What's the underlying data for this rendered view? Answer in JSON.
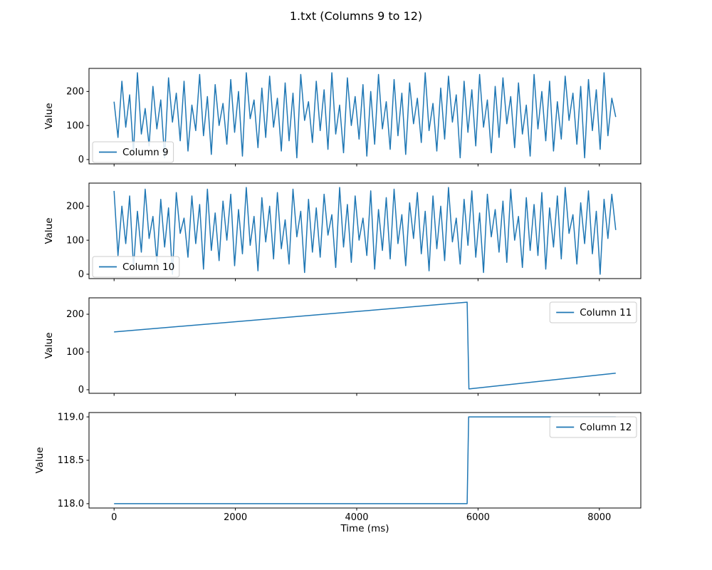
{
  "title": "1.txt (Columns 9 to 12)",
  "line_color": "#1f77b4",
  "axis_color": "#000000",
  "legend_border_color": "#cccccc",
  "xaxis": {
    "label": "Time (ms)",
    "ticks": [
      0,
      2000,
      4000,
      6000,
      8000
    ],
    "tick_labels": [
      "0",
      "2000",
      "4000",
      "6000",
      "8000"
    ],
    "xlim": [
      -413.5,
      8683.5
    ]
  },
  "chart_data": [
    {
      "type": "line",
      "name": "Column 9",
      "ylabel": "Value",
      "legend_loc": "lower left",
      "yticks": [
        0,
        100,
        200
      ],
      "ytick_labels": [
        "0",
        "100",
        "200"
      ],
      "ylim": [
        -12.75,
        267.75
      ],
      "x_start": 0,
      "x_end": 8270,
      "values": [
        170,
        65,
        230,
        95,
        190,
        20,
        255,
        75,
        150,
        40,
        215,
        90,
        175,
        5,
        240,
        110,
        195,
        55,
        230,
        25,
        160,
        85,
        250,
        70,
        185,
        15,
        220,
        100,
        165,
        45,
        235,
        80,
        200,
        10,
        255,
        120,
        175,
        35,
        210,
        65,
        245,
        95,
        180,
        25,
        225,
        55,
        195,
        5,
        250,
        115,
        170,
        50,
        230,
        85,
        205,
        30,
        255,
        75,
        160,
        20,
        240,
        100,
        185,
        60,
        220,
        10,
        200,
        45,
        250,
        90,
        170,
        30,
        235,
        70,
        195,
        15,
        225,
        105,
        180,
        50,
        255,
        85,
        165,
        25,
        210,
        60,
        245,
        110,
        190,
        5,
        230,
        80,
        205,
        40,
        250,
        95,
        175,
        20,
        215,
        65,
        240,
        105,
        185,
        35,
        225,
        75,
        160,
        10,
        250,
        90,
        200,
        55,
        230,
        25,
        170,
        60,
        245,
        115,
        195,
        45,
        215,
        5,
        235,
        85,
        205,
        30,
        255,
        70,
        180,
        125
      ]
    },
    {
      "type": "line",
      "name": "Column 10",
      "ylabel": "Value",
      "legend_loc": "lower left",
      "yticks": [
        0,
        100,
        200
      ],
      "ytick_labels": [
        "0",
        "100",
        "200"
      ],
      "ylim": [
        -12.75,
        267.75
      ],
      "x_start": 0,
      "x_end": 8270,
      "values": [
        245,
        55,
        200,
        90,
        230,
        20,
        185,
        65,
        250,
        105,
        170,
        35,
        220,
        80,
        195,
        0,
        240,
        120,
        165,
        50,
        230,
        90,
        205,
        15,
        250,
        70,
        180,
        40,
        215,
        100,
        235,
        25,
        190,
        60,
        255,
        85,
        170,
        10,
        225,
        95,
        200,
        45,
        240,
        75,
        160,
        30,
        250,
        110,
        185,
        5,
        220,
        65,
        195,
        50,
        235,
        115,
        175,
        20,
        255,
        80,
        205,
        35,
        230,
        100,
        165,
        55,
        245,
        15,
        190,
        70,
        225,
        45,
        250,
        90,
        175,
        25,
        210,
        105,
        240,
        60,
        185,
        10,
        230,
        75,
        200,
        40,
        255,
        95,
        165,
        30,
        220,
        85,
        245,
        50,
        180,
        5,
        235,
        110,
        190,
        65,
        215,
        35,
        250,
        100,
        170,
        20,
        225,
        70,
        205,
        55,
        240,
        15,
        195,
        80,
        230,
        45,
        255,
        120,
        175,
        30,
        210,
        90,
        245,
        60,
        185,
        0,
        220,
        105,
        235,
        130
      ]
    },
    {
      "type": "line",
      "name": "Column 11",
      "ylabel": "Value",
      "legend_loc": "upper right",
      "yticks": [
        0,
        100,
        200
      ],
      "ytick_labels": [
        "0",
        "100",
        "200"
      ],
      "ylim": [
        -9.5,
        243.5
      ],
      "points": [
        [
          0,
          153
        ],
        [
          5820,
          232
        ],
        [
          5850,
          2
        ],
        [
          8270,
          44
        ]
      ]
    },
    {
      "type": "line",
      "name": "Column 12",
      "ylabel": "Value",
      "legend_loc": "upper right",
      "yticks": [
        118.0,
        118.5,
        119.0
      ],
      "ytick_labels": [
        "118.0",
        "118.5",
        "119.0"
      ],
      "ylim": [
        117.95,
        119.05
      ],
      "points": [
        [
          0,
          118
        ],
        [
          5820,
          118
        ],
        [
          5845,
          119
        ],
        [
          8270,
          119
        ]
      ]
    }
  ]
}
